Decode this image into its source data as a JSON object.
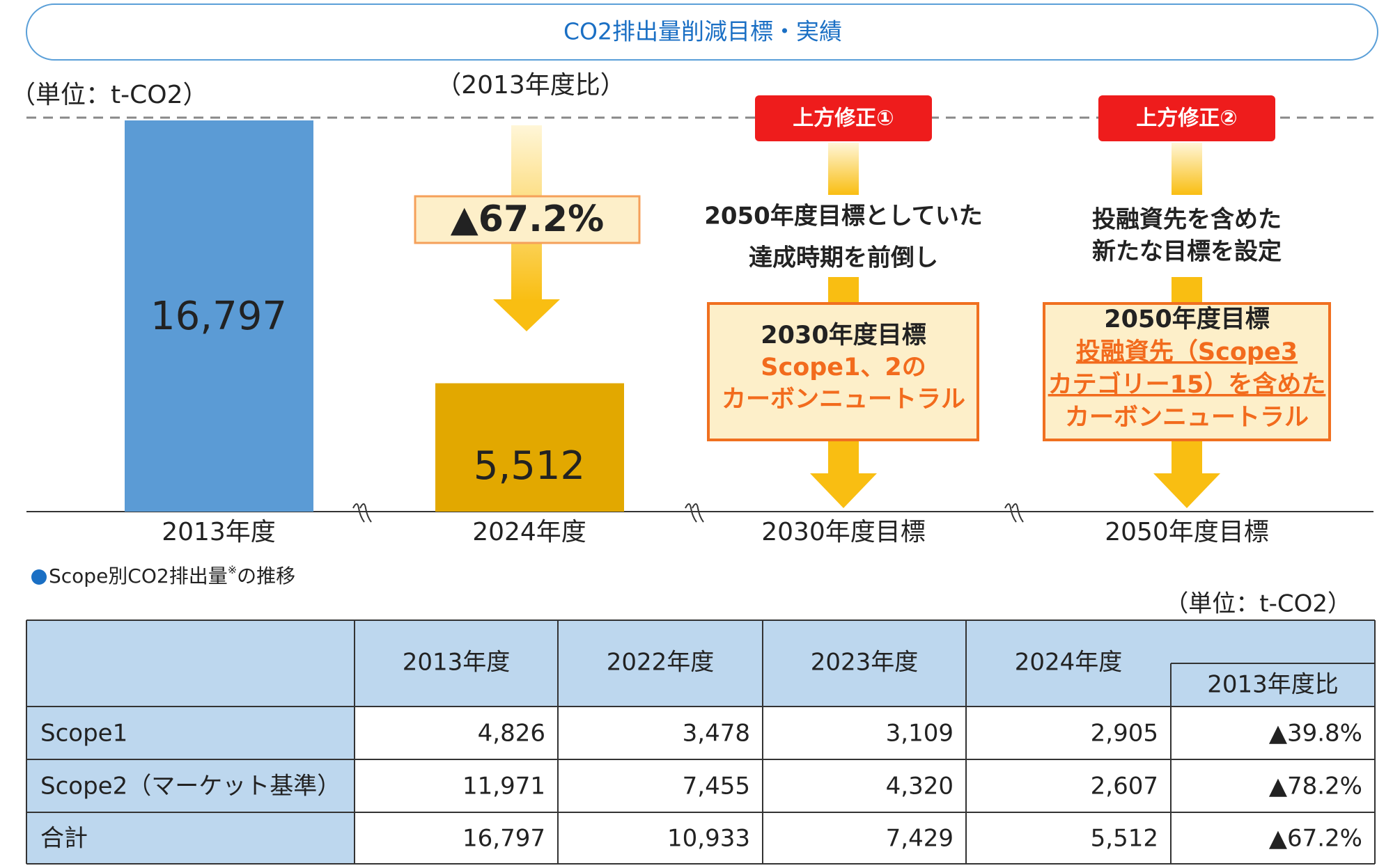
{
  "header": {
    "title": "CO2排出量削減目標・実績"
  },
  "chart_data": {
    "type": "bar",
    "unit": "（単位：t-CO2）",
    "categories": [
      "2013年度",
      "2024年度",
      "2030年度目標",
      "2050年度目標"
    ],
    "values": [
      16797,
      5512,
      null,
      null
    ],
    "value_labels": [
      "16,797",
      "5,512",
      null,
      null
    ],
    "colors": [
      "#5b9bd5",
      "#e2a800",
      null,
      null
    ]
  },
  "reduction": {
    "subtitle": "（2013年度比）",
    "label": "▲67.2%"
  },
  "targets": [
    {
      "badge": "上方修正①",
      "lines": [
        "2050年度目標としていた",
        "達成時期を前倒し"
      ],
      "box": {
        "title": "2030年度目標",
        "lines": [
          "Scope1、2の",
          "カーボンニュートラル"
        ]
      }
    },
    {
      "badge": "上方修正②",
      "lines": [
        "投融資先を含めた",
        "新たな目標を設定"
      ],
      "box": {
        "title": "2050年度目標",
        "lines": [
          "投融資先（Scope3",
          "カテゴリー15）を含めた",
          "カーボンニュートラル"
        ]
      }
    }
  ],
  "table": {
    "heading": "Scope別CO2排出量",
    "heading_note": "※",
    "heading_suffix": "の推移",
    "unit": "（単位：t-CO2）",
    "columns": [
      "2013年度",
      "2022年度",
      "2023年度",
      "2024年度"
    ],
    "ratio_header": "2013年度比",
    "rows": [
      [
        "Scope1",
        "4,826",
        "3,478",
        "3,109",
        "2,905",
        "▲39.8%"
      ],
      [
        "Scope2（マーケット基準）",
        "11,971",
        "7,455",
        "4,320",
        "2,607",
        "▲78.2%"
      ],
      [
        "合計",
        "16,797",
        "10,933",
        "7,429",
        "5,512",
        "▲67.2%"
      ]
    ]
  }
}
